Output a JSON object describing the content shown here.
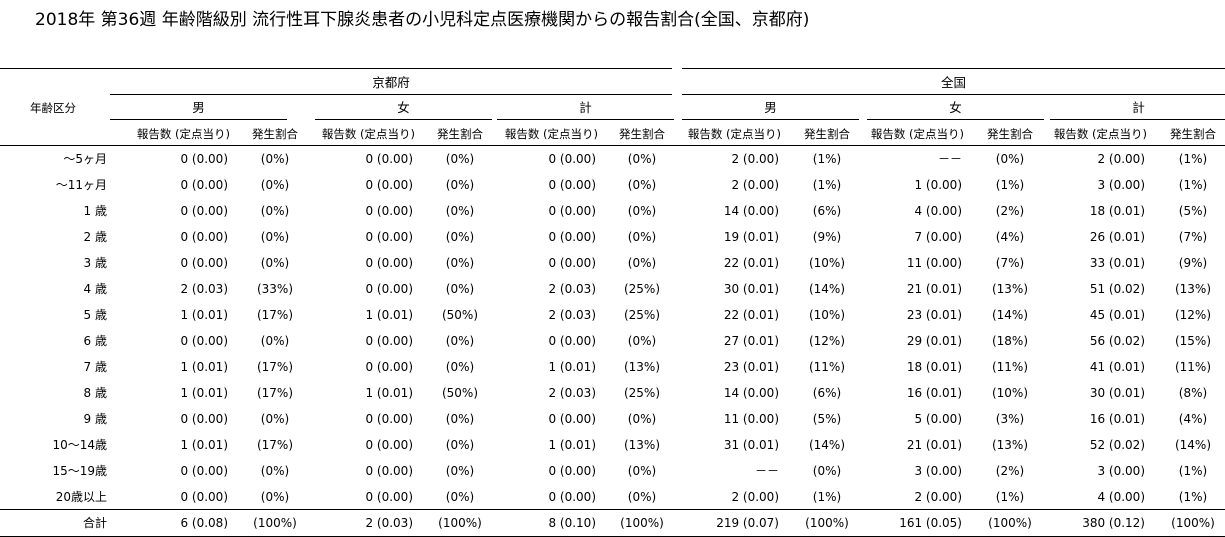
{
  "title": "2018年 第36週 年齢階級別 流行性耳下腺炎患者の小児科定点医療機関からの報告割合(全国、京都府)",
  "header": {
    "age_label": "年齢区分",
    "regions": [
      "京都府",
      "全国"
    ],
    "sexes": [
      "男",
      "女",
      "計"
    ],
    "count_label": "報告数 (定点当り)",
    "rate_label": "発生割合"
  },
  "rows": [
    {
      "age": "～5ヶ月",
      "cells": [
        [
          "0 (0.00)",
          "(0%)"
        ],
        [
          "0 (0.00)",
          "(0%)"
        ],
        [
          "0 (0.00)",
          "(0%)"
        ],
        [
          "2 (0.00)",
          "(1%)"
        ],
        [
          "－－",
          "(0%)"
        ],
        [
          "2 (0.00)",
          "(1%)"
        ]
      ]
    },
    {
      "age": "～11ヶ月",
      "cells": [
        [
          "0 (0.00)",
          "(0%)"
        ],
        [
          "0 (0.00)",
          "(0%)"
        ],
        [
          "0 (0.00)",
          "(0%)"
        ],
        [
          "2 (0.00)",
          "(1%)"
        ],
        [
          "1 (0.00)",
          "(1%)"
        ],
        [
          "3 (0.00)",
          "(1%)"
        ]
      ]
    },
    {
      "age": "1 歳",
      "cells": [
        [
          "0 (0.00)",
          "(0%)"
        ],
        [
          "0 (0.00)",
          "(0%)"
        ],
        [
          "0 (0.00)",
          "(0%)"
        ],
        [
          "14 (0.00)",
          "(6%)"
        ],
        [
          "4 (0.00)",
          "(2%)"
        ],
        [
          "18 (0.01)",
          "(5%)"
        ]
      ]
    },
    {
      "age": "2 歳",
      "cells": [
        [
          "0 (0.00)",
          "(0%)"
        ],
        [
          "0 (0.00)",
          "(0%)"
        ],
        [
          "0 (0.00)",
          "(0%)"
        ],
        [
          "19 (0.01)",
          "(9%)"
        ],
        [
          "7 (0.00)",
          "(4%)"
        ],
        [
          "26 (0.01)",
          "(7%)"
        ]
      ]
    },
    {
      "age": "3 歳",
      "cells": [
        [
          "0 (0.00)",
          "(0%)"
        ],
        [
          "0 (0.00)",
          "(0%)"
        ],
        [
          "0 (0.00)",
          "(0%)"
        ],
        [
          "22 (0.01)",
          "(10%)"
        ],
        [
          "11 (0.00)",
          "(7%)"
        ],
        [
          "33 (0.01)",
          "(9%)"
        ]
      ]
    },
    {
      "age": "4 歳",
      "cells": [
        [
          "2 (0.03)",
          "(33%)"
        ],
        [
          "0 (0.00)",
          "(0%)"
        ],
        [
          "2 (0.03)",
          "(25%)"
        ],
        [
          "30 (0.01)",
          "(14%)"
        ],
        [
          "21 (0.01)",
          "(13%)"
        ],
        [
          "51 (0.02)",
          "(13%)"
        ]
      ]
    },
    {
      "age": "5 歳",
      "cells": [
        [
          "1 (0.01)",
          "(17%)"
        ],
        [
          "1 (0.01)",
          "(50%)"
        ],
        [
          "2 (0.03)",
          "(25%)"
        ],
        [
          "22 (0.01)",
          "(10%)"
        ],
        [
          "23 (0.01)",
          "(14%)"
        ],
        [
          "45 (0.01)",
          "(12%)"
        ]
      ]
    },
    {
      "age": "6 歳",
      "cells": [
        [
          "0 (0.00)",
          "(0%)"
        ],
        [
          "0 (0.00)",
          "(0%)"
        ],
        [
          "0 (0.00)",
          "(0%)"
        ],
        [
          "27 (0.01)",
          "(12%)"
        ],
        [
          "29 (0.01)",
          "(18%)"
        ],
        [
          "56 (0.02)",
          "(15%)"
        ]
      ]
    },
    {
      "age": "7 歳",
      "cells": [
        [
          "1 (0.01)",
          "(17%)"
        ],
        [
          "0 (0.00)",
          "(0%)"
        ],
        [
          "1 (0.01)",
          "(13%)"
        ],
        [
          "23 (0.01)",
          "(11%)"
        ],
        [
          "18 (0.01)",
          "(11%)"
        ],
        [
          "41 (0.01)",
          "(11%)"
        ]
      ]
    },
    {
      "age": "8 歳",
      "cells": [
        [
          "1 (0.01)",
          "(17%)"
        ],
        [
          "1 (0.01)",
          "(50%)"
        ],
        [
          "2 (0.03)",
          "(25%)"
        ],
        [
          "14 (0.00)",
          "(6%)"
        ],
        [
          "16 (0.01)",
          "(10%)"
        ],
        [
          "30 (0.01)",
          "(8%)"
        ]
      ]
    },
    {
      "age": "9 歳",
      "cells": [
        [
          "0 (0.00)",
          "(0%)"
        ],
        [
          "0 (0.00)",
          "(0%)"
        ],
        [
          "0 (0.00)",
          "(0%)"
        ],
        [
          "11 (0.00)",
          "(5%)"
        ],
        [
          "5 (0.00)",
          "(3%)"
        ],
        [
          "16 (0.01)",
          "(4%)"
        ]
      ]
    },
    {
      "age": "10～14歳",
      "cells": [
        [
          "1 (0.01)",
          "(17%)"
        ],
        [
          "0 (0.00)",
          "(0%)"
        ],
        [
          "1 (0.01)",
          "(13%)"
        ],
        [
          "31 (0.01)",
          "(14%)"
        ],
        [
          "21 (0.01)",
          "(13%)"
        ],
        [
          "52 (0.02)",
          "(14%)"
        ]
      ]
    },
    {
      "age": "15～19歳",
      "cells": [
        [
          "0 (0.00)",
          "(0%)"
        ],
        [
          "0 (0.00)",
          "(0%)"
        ],
        [
          "0 (0.00)",
          "(0%)"
        ],
        [
          "－－",
          "(0%)"
        ],
        [
          "3 (0.00)",
          "(2%)"
        ],
        [
          "3 (0.00)",
          "(1%)"
        ]
      ]
    },
    {
      "age": "20歳以上",
      "cells": [
        [
          "0 (0.00)",
          "(0%)"
        ],
        [
          "0 (0.00)",
          "(0%)"
        ],
        [
          "0 (0.00)",
          "(0%)"
        ],
        [
          "2 (0.00)",
          "(1%)"
        ],
        [
          "2 (0.00)",
          "(1%)"
        ],
        [
          "4 (0.00)",
          "(1%)"
        ]
      ]
    }
  ],
  "total": {
    "label": "合計",
    "cells": [
      [
        "6 (0.08)",
        "(100%)"
      ],
      [
        "2 (0.03)",
        "(100%)"
      ],
      [
        "8 (0.10)",
        "(100%)"
      ],
      [
        "219 (0.07)",
        "(100%)"
      ],
      [
        "161 (0.05)",
        "(100%)"
      ],
      [
        "380 (0.12)",
        "(100%)"
      ]
    ]
  }
}
